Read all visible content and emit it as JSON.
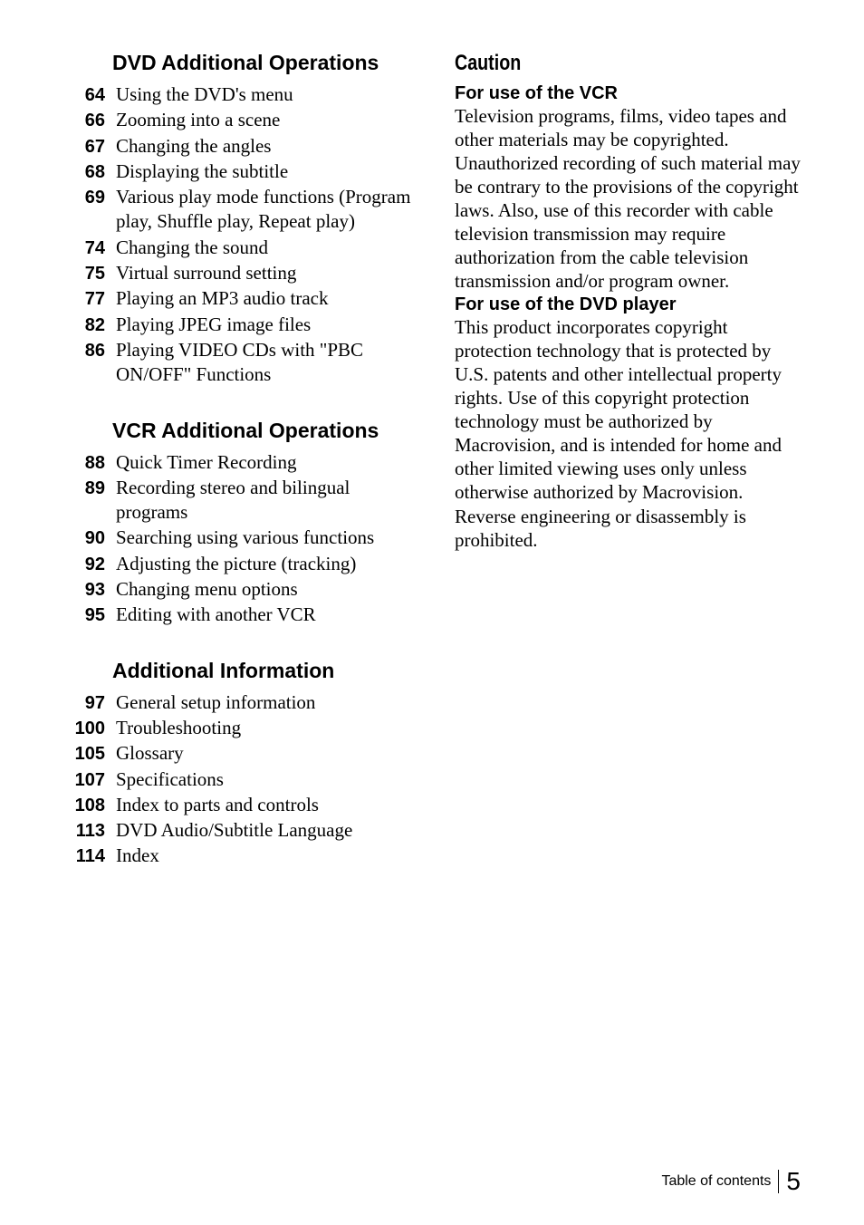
{
  "left": {
    "sections": [
      {
        "title": "DVD Additional Operations",
        "items": [
          {
            "page": "64",
            "text": "Using the DVD's menu"
          },
          {
            "page": "66",
            "text": "Zooming into a scene"
          },
          {
            "page": "67",
            "text": "Changing the angles"
          },
          {
            "page": "68",
            "text": "Displaying the subtitle"
          },
          {
            "page": "69",
            "text": "Various play mode functions (Program play, Shuffle play, Repeat play)"
          },
          {
            "page": "74",
            "text": "Changing the sound"
          },
          {
            "page": "75",
            "text": "Virtual surround setting"
          },
          {
            "page": "77",
            "text": "Playing an MP3 audio track"
          },
          {
            "page": "82",
            "text": "Playing JPEG image files"
          },
          {
            "page": "86",
            "text": "Playing VIDEO CDs with \"PBC ON/OFF\" Functions"
          }
        ]
      },
      {
        "title": "VCR Additional Operations",
        "items": [
          {
            "page": "88",
            "text": "Quick Timer Recording"
          },
          {
            "page": "89",
            "text": "Recording stereo and bilingual programs"
          },
          {
            "page": "90",
            "text": "Searching using various functions"
          },
          {
            "page": "92",
            "text": "Adjusting the picture (tracking)"
          },
          {
            "page": "93",
            "text": "Changing menu options"
          },
          {
            "page": "95",
            "text": "Editing with another VCR"
          }
        ]
      },
      {
        "title": "Additional Information",
        "items": [
          {
            "page": "97",
            "text": "General setup information"
          },
          {
            "page": "100",
            "text": "Troubleshooting"
          },
          {
            "page": "105",
            "text": "Glossary"
          },
          {
            "page": "107",
            "text": "Specifications"
          },
          {
            "page": "108",
            "text": "Index to parts and controls"
          },
          {
            "page": "113",
            "text": "DVD Audio/Subtitle Language"
          },
          {
            "page": "114",
            "text": "Index"
          }
        ]
      }
    ]
  },
  "right": {
    "caution": "Caution",
    "blocks": [
      {
        "heading": "For use of the VCR",
        "body": "Television programs, films, video tapes and other materials may be copyrighted. Unauthorized recording of such material may be contrary to the provisions of the copyright laws.  Also, use of this recorder with cable television transmission may require authorization from the cable television transmission and/or program owner."
      },
      {
        "heading": "For use of the DVD player",
        "body": "This product incorporates copyright protection technology that is protected by U.S. patents and other intellectual property rights.  Use of this copyright protection technology must be authorized by Macrovision, and is intended for home and other limited viewing uses only unless otherwise authorized by Macrovision. Reverse engineering or disassembly is prohibited."
      }
    ]
  },
  "footer": {
    "label": "Table of contents",
    "page": "5"
  }
}
